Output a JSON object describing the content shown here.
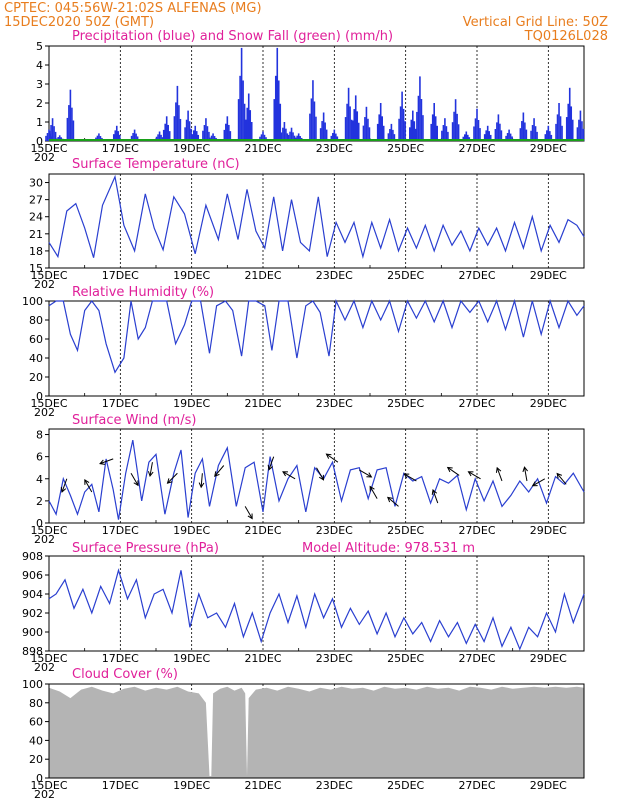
{
  "header": {
    "line1_left": "CPTEC:   045:56W-21:02S   ALFENAS (MG)",
    "line2_left": "15DEC2020 50Z (GMT)",
    "line2_right": "Vertical Grid Line: 50Z",
    "line3_right": "TQ0126L028"
  },
  "colors": {
    "precip": "#2233dd",
    "snow": "#18a018",
    "line": "#2a3fd0",
    "cloud": "#b4b4b4",
    "title": "#e0209a",
    "header": "#e87d1e"
  },
  "chart_data": [
    {
      "type": "bar",
      "title": "Precipitation (blue) and Snow Fall (green) (mm/h)",
      "ylim": [
        0,
        5
      ],
      "yticks": [
        0,
        1,
        2,
        3,
        4,
        5
      ],
      "x_tick_labels": [
        "15DEC",
        "17DEC",
        "19DEC",
        "21DEC",
        "23DEC",
        "25DEC",
        "27DEC",
        "29DEC"
      ],
      "x_extra_label": "202",
      "x_range_days": [
        15.0,
        30.0
      ],
      "grid": "vertical dashed at 00Z each day",
      "series": [
        {
          "name": "Precipitation",
          "x": [
            15.0,
            15.1,
            15.3,
            15.6,
            16.4,
            16.9,
            17.4,
            18.1,
            18.3,
            18.6,
            18.9,
            19.1,
            19.4,
            19.6,
            20.0,
            20.4,
            20.6,
            21.0,
            21.4,
            21.6,
            21.8,
            22.0,
            22.4,
            22.7,
            23.0,
            23.4,
            23.6,
            23.9,
            24.3,
            24.6,
            24.9,
            25.2,
            25.4,
            25.8,
            26.1,
            26.4,
            26.7,
            27.0,
            27.3,
            27.6,
            27.9,
            28.3,
            28.6,
            29.0,
            29.3,
            29.6,
            29.9
          ],
          "values": [
            0.6,
            1.2,
            0.3,
            2.7,
            0.4,
            0.8,
            0.6,
            0.5,
            1.3,
            2.9,
            1.6,
            0.8,
            1.2,
            0.4,
            1.3,
            4.9,
            2.5,
            0.5,
            4.9,
            1.0,
            0.7,
            0.4,
            3.2,
            1.5,
            0.6,
            2.8,
            2.4,
            1.8,
            2.0,
            0.9,
            2.6,
            1.6,
            3.4,
            2.0,
            1.2,
            2.2,
            0.5,
            1.7,
            0.8,
            1.4,
            0.6,
            1.5,
            1.2,
            0.8,
            2.0,
            2.8,
            1.6
          ]
        },
        {
          "name": "Snow Fall",
          "values": [
            0
          ]
        }
      ]
    },
    {
      "type": "line",
      "title": "Surface Temperature (nC)",
      "ylim": [
        15,
        31.5
      ],
      "yticks": [
        15,
        18,
        21,
        24,
        27,
        30
      ],
      "x_tick_labels": [
        "15DEC",
        "17DEC",
        "19DEC",
        "21DEC",
        "23DEC",
        "25DEC",
        "27DEC",
        "29DEC"
      ],
      "x_extra_label": "202",
      "series": [
        {
          "name": "Surface Temperature",
          "x": [
            15.0,
            15.25,
            15.5,
            15.75,
            16.0,
            16.25,
            16.5,
            16.85,
            17.1,
            17.4,
            17.7,
            17.95,
            18.2,
            18.5,
            18.8,
            19.1,
            19.4,
            19.75,
            20.0,
            20.3,
            20.55,
            20.8,
            21.05,
            21.3,
            21.55,
            21.8,
            22.05,
            22.3,
            22.55,
            22.8,
            23.05,
            23.3,
            23.55,
            23.8,
            24.05,
            24.3,
            24.55,
            24.8,
            25.05,
            25.3,
            25.55,
            25.8,
            26.05,
            26.3,
            26.55,
            26.8,
            27.05,
            27.3,
            27.55,
            27.8,
            28.05,
            28.3,
            28.55,
            28.8,
            29.05,
            29.3,
            29.55,
            29.8,
            30.0
          ],
          "values": [
            19.5,
            17.0,
            25.0,
            26.3,
            22.0,
            16.8,
            26.0,
            31.0,
            22.5,
            18.0,
            28.0,
            22.0,
            18.2,
            27.5,
            24.5,
            17.5,
            26.0,
            20.0,
            28.0,
            20.0,
            28.8,
            21.5,
            18.5,
            27.5,
            18.0,
            27.0,
            19.5,
            18.0,
            27.5,
            17.0,
            23.0,
            19.5,
            23.0,
            17.0,
            23.0,
            18.5,
            23.5,
            18.0,
            22.0,
            18.5,
            22.5,
            18.0,
            22.5,
            19.0,
            21.5,
            18.0,
            22.0,
            19.0,
            22.0,
            18.0,
            23.0,
            18.5,
            24.0,
            18.0,
            22.5,
            19.5,
            23.5,
            22.5,
            20.5
          ]
        }
      ]
    },
    {
      "type": "line",
      "title": "Relative Humidity (%)",
      "ylim": [
        0,
        100
      ],
      "yticks": [
        0,
        20,
        40,
        60,
        80,
        100
      ],
      "x_tick_labels": [
        "15DEC",
        "17DEC",
        "19DEC",
        "21DEC",
        "23DEC",
        "25DEC",
        "27DEC",
        "29DEC"
      ],
      "x_extra_label": "202",
      "series": [
        {
          "name": "Relative Humidity",
          "x": [
            15.0,
            15.2,
            15.4,
            15.6,
            15.8,
            16.0,
            16.2,
            16.4,
            16.6,
            16.85,
            17.1,
            17.3,
            17.5,
            17.7,
            17.9,
            18.1,
            18.3,
            18.55,
            18.8,
            19.0,
            19.25,
            19.5,
            19.7,
            19.95,
            20.15,
            20.4,
            20.6,
            20.8,
            21.05,
            21.25,
            21.45,
            21.7,
            21.95,
            22.2,
            22.4,
            22.6,
            22.85,
            23.05,
            23.3,
            23.55,
            23.8,
            24.05,
            24.3,
            24.55,
            24.8,
            25.05,
            25.3,
            25.55,
            25.8,
            26.05,
            26.3,
            26.55,
            26.8,
            27.05,
            27.3,
            27.55,
            27.8,
            28.05,
            28.3,
            28.55,
            28.8,
            29.05,
            29.3,
            29.55,
            29.8,
            30.0
          ],
          "values": [
            95,
            100,
            100,
            65,
            48,
            90,
            100,
            90,
            55,
            25,
            40,
            100,
            60,
            72,
            100,
            100,
            100,
            55,
            75,
            100,
            100,
            45,
            95,
            100,
            90,
            42,
            100,
            100,
            95,
            48,
            100,
            100,
            40,
            95,
            100,
            88,
            42,
            100,
            80,
            100,
            72,
            100,
            80,
            100,
            68,
            100,
            82,
            100,
            78,
            100,
            72,
            100,
            88,
            100,
            78,
            100,
            70,
            100,
            62,
            100,
            65,
            100,
            72,
            100,
            85,
            95
          ]
        }
      ]
    },
    {
      "type": "line",
      "title": "Surface Wind (m/s)",
      "ylim": [
        0,
        8.5
      ],
      "yticks": [
        0,
        2,
        4,
        6,
        8
      ],
      "x_tick_labels": [
        "15DEC",
        "17DEC",
        "19DEC",
        "21DEC",
        "23DEC",
        "25DEC",
        "27DEC",
        "29DEC"
      ],
      "x_extra_label": "202",
      "series": [
        {
          "name": "Surface Wind",
          "x": [
            15.0,
            15.2,
            15.4,
            15.6,
            15.8,
            16.0,
            16.2,
            16.4,
            16.6,
            16.8,
            16.95,
            17.15,
            17.35,
            17.6,
            17.8,
            18.0,
            18.25,
            18.5,
            18.7,
            18.9,
            19.1,
            19.3,
            19.5,
            19.75,
            20.0,
            20.25,
            20.5,
            20.75,
            21.0,
            21.2,
            21.45,
            21.7,
            21.95,
            22.2,
            22.45,
            22.7,
            22.95,
            23.2,
            23.45,
            23.7,
            23.95,
            24.2,
            24.45,
            24.7,
            24.95,
            25.2,
            25.45,
            25.7,
            25.95,
            26.2,
            26.45,
            26.7,
            26.95,
            27.2,
            27.45,
            27.7,
            27.95,
            28.2,
            28.45,
            28.7,
            28.95,
            29.2,
            29.45,
            29.7,
            30.0
          ],
          "values": [
            2.0,
            0.8,
            4.0,
            2.5,
            0.8,
            2.8,
            3.5,
            1.0,
            5.8,
            3.0,
            0.3,
            4.5,
            7.5,
            2.0,
            5.5,
            6.2,
            0.8,
            4.5,
            6.6,
            0.5,
            4.5,
            5.8,
            1.5,
            5.2,
            6.8,
            1.5,
            5.0,
            5.5,
            1.0,
            6.0,
            2.0,
            4.0,
            5.2,
            1.0,
            5.0,
            4.0,
            5.5,
            2.0,
            4.8,
            5.0,
            2.2,
            4.8,
            5.0,
            1.5,
            4.5,
            3.8,
            4.2,
            1.8,
            4.0,
            3.6,
            4.3,
            1.2,
            4.0,
            2.0,
            3.8,
            1.5,
            2.5,
            3.8,
            2.8,
            4.0,
            1.8,
            4.2,
            3.5,
            4.5,
            2.8
          ]
        }
      ],
      "arrows": {
        "x": [
          15.5,
          16.2,
          16.8,
          17.3,
          17.9,
          18.6,
          19.3,
          19.9,
          20.5,
          21.3,
          21.9,
          22.5,
          23.1,
          23.7,
          24.2,
          24.8,
          25.3,
          25.9,
          26.5,
          27.1,
          27.7,
          28.4,
          28.9,
          29.5
        ],
        "dir_deg": [
          250,
          120,
          200,
          300,
          260,
          225,
          265,
          230,
          300,
          250,
          150,
          300,
          145,
          330,
          120,
          140,
          150,
          110,
          145,
          150,
          110,
          100,
          210,
          130
        ]
      }
    },
    {
      "type": "line",
      "title": "Surface Pressure (hPa)",
      "annotation": "Model Altitude: 978.531  m",
      "ylim": [
        898,
        908
      ],
      "yticks": [
        898,
        900,
        902,
        904,
        906,
        908
      ],
      "x_tick_labels": [
        "15DEC",
        "17DEC",
        "19DEC",
        "21DEC",
        "23DEC",
        "25DEC",
        "27DEC",
        "29DEC"
      ],
      "x_extra_label": "202",
      "series": [
        {
          "name": "Surface Pressure",
          "x": [
            15.0,
            15.2,
            15.45,
            15.7,
            15.95,
            16.2,
            16.45,
            16.7,
            16.95,
            17.2,
            17.45,
            17.7,
            17.95,
            18.2,
            18.45,
            18.7,
            18.95,
            19.2,
            19.45,
            19.7,
            19.95,
            20.2,
            20.45,
            20.7,
            20.95,
            21.2,
            21.45,
            21.7,
            21.95,
            22.2,
            22.45,
            22.7,
            22.95,
            23.2,
            23.45,
            23.7,
            23.95,
            24.2,
            24.45,
            24.7,
            24.95,
            25.2,
            25.45,
            25.7,
            25.95,
            26.2,
            26.45,
            26.7,
            26.95,
            27.2,
            27.45,
            27.7,
            27.95,
            28.2,
            28.45,
            28.7,
            28.95,
            29.2,
            29.45,
            29.7,
            30.0
          ],
          "values": [
            903.5,
            904.0,
            905.5,
            902.5,
            904.5,
            902.0,
            904.8,
            903.0,
            906.5,
            903.5,
            905.5,
            901.5,
            904.0,
            904.5,
            902.0,
            906.5,
            900.5,
            904.0,
            901.5,
            902.0,
            900.5,
            903.0,
            899.5,
            902.0,
            899.0,
            902.0,
            904.0,
            901.0,
            903.8,
            900.5,
            904.0,
            901.5,
            903.5,
            900.5,
            902.5,
            900.8,
            902.2,
            899.8,
            902.0,
            899.5,
            901.5,
            899.8,
            901.0,
            899.0,
            901.2,
            899.5,
            901.0,
            898.8,
            900.8,
            899.0,
            901.5,
            898.5,
            900.5,
            898.2,
            900.5,
            899.5,
            902.0,
            900.0,
            904.0,
            901.0,
            904.0
          ]
        }
      ]
    },
    {
      "type": "area",
      "title": "Cloud Cover (%)",
      "ylim": [
        0,
        100
      ],
      "yticks": [
        0,
        20,
        40,
        60,
        80,
        100
      ],
      "x_tick_labels": [
        "15DEC",
        "17DEC",
        "19DEC",
        "21DEC",
        "23DEC",
        "25DEC",
        "27DEC",
        "29DEC"
      ],
      "x_extra_label": "202",
      "series": [
        {
          "name": "Cloud Cover",
          "x": [
            15.0,
            15.3,
            15.6,
            15.9,
            16.2,
            16.5,
            16.8,
            17.1,
            17.4,
            17.7,
            18.0,
            18.3,
            18.6,
            18.9,
            19.2,
            19.4,
            19.5,
            19.55,
            19.6,
            19.8,
            20.0,
            20.2,
            20.4,
            20.5,
            20.55,
            20.6,
            20.8,
            21.1,
            21.4,
            21.7,
            22.0,
            22.3,
            22.6,
            22.9,
            23.2,
            23.5,
            23.8,
            24.1,
            24.4,
            24.7,
            25.0,
            25.3,
            25.6,
            25.9,
            26.2,
            26.5,
            26.8,
            27.1,
            27.4,
            27.7,
            28.0,
            28.3,
            28.6,
            28.9,
            29.2,
            29.5,
            29.8,
            30.0
          ],
          "values": [
            96,
            92,
            85,
            94,
            97,
            93,
            90,
            95,
            97,
            93,
            96,
            94,
            97,
            92,
            90,
            80,
            2,
            2,
            90,
            95,
            97,
            93,
            96,
            90,
            2,
            85,
            94,
            96,
            93,
            97,
            95,
            92,
            96,
            94,
            97,
            95,
            96,
            93,
            97,
            95,
            96,
            94,
            97,
            95,
            96,
            93,
            97,
            96,
            94,
            97,
            95,
            96,
            97,
            96,
            97,
            96,
            97,
            96
          ]
        }
      ]
    }
  ]
}
